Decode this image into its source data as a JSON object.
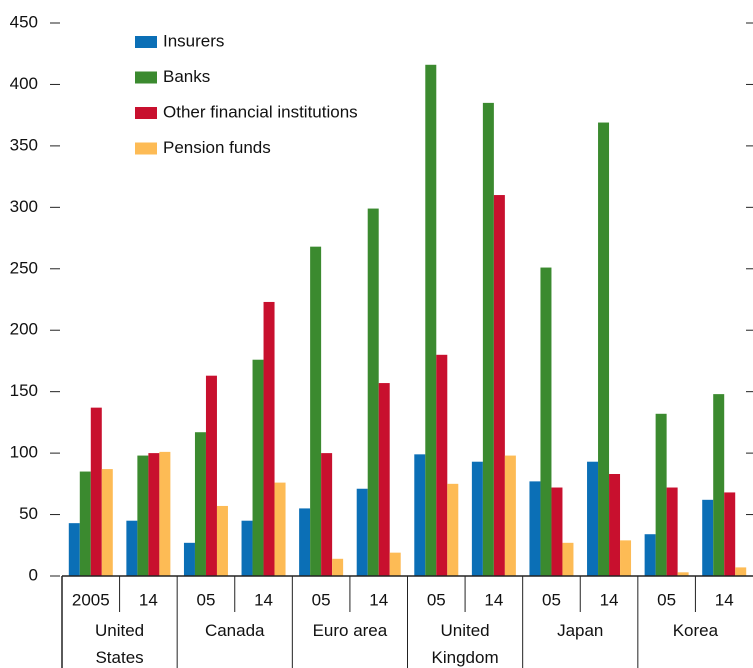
{
  "chart_data": {
    "type": "bar",
    "categories": [
      "2005",
      "14",
      "05",
      "14",
      "05",
      "14",
      "05",
      "14",
      "05",
      "14",
      "05",
      "14"
    ],
    "groups": [
      "United States",
      "Canada",
      "Euro area",
      "United Kingdom",
      "Japan",
      "Korea"
    ],
    "series": [
      {
        "name": "Insurers",
        "color": "#0b6fb6",
        "values": [
          43,
          45,
          27,
          45,
          55,
          71,
          99,
          93,
          77,
          93,
          34,
          62
        ]
      },
      {
        "name": "Banks",
        "color": "#3b8a2f",
        "values": [
          85,
          98,
          117,
          176,
          268,
          299,
          416,
          385,
          251,
          369,
          132,
          148
        ]
      },
      {
        "name": "Other financial institutions",
        "color": "#c8102e",
        "values": [
          137,
          100,
          163,
          223,
          100,
          157,
          180,
          310,
          72,
          83,
          72,
          68
        ]
      },
      {
        "name": "Pension funds",
        "color": "#fdbb55",
        "values": [
          87,
          101,
          57,
          76,
          14,
          19,
          75,
          98,
          27,
          29,
          3,
          7
        ]
      }
    ],
    "ylim": [
      0,
      450
    ],
    "yticks": [
      0,
      50,
      100,
      150,
      200,
      250,
      300,
      350,
      400,
      450
    ]
  }
}
